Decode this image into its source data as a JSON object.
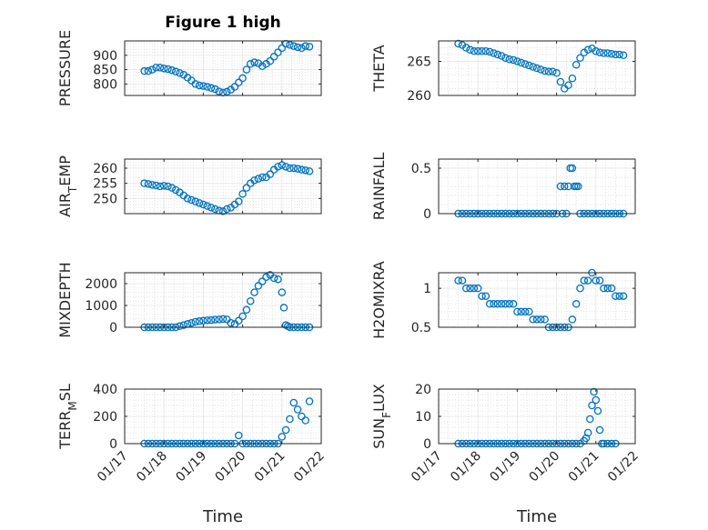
{
  "figure_title": "Figure 1 high",
  "x_axis_label": "Time",
  "x_tick_labels": [
    "01/17",
    "01/18",
    "01/19",
    "01/20",
    "01/21",
    "01/22"
  ],
  "colors": {
    "marker": "#0072BD",
    "axis": "#262626",
    "grid": "#d9d9d9"
  },
  "chart_data": [
    {
      "type": "scatter",
      "ylabel": "PRESSURE",
      "ylim": [
        760,
        950
      ],
      "yticks": [
        800,
        850,
        900
      ],
      "xlim": [
        17,
        22
      ],
      "grid": true,
      "x": [
        17.5,
        17.6,
        17.7,
        17.8,
        17.9,
        18.0,
        18.1,
        18.2,
        18.3,
        18.4,
        18.5,
        18.6,
        18.7,
        18.8,
        18.9,
        19.0,
        19.1,
        19.2,
        19.3,
        19.4,
        19.5,
        19.6,
        19.7,
        19.8,
        19.9,
        20.0,
        20.1,
        20.2,
        20.3,
        20.4,
        20.5,
        20.6,
        20.7,
        20.8,
        20.9,
        21.0,
        21.1,
        21.2,
        21.3,
        21.4,
        21.5,
        21.6,
        21.7
      ],
      "y": [
        845,
        845,
        850,
        857,
        857,
        854,
        852,
        848,
        843,
        838,
        832,
        822,
        812,
        800,
        795,
        793,
        790,
        786,
        782,
        774,
        770,
        773,
        780,
        790,
        805,
        820,
        850,
        870,
        875,
        872,
        862,
        870,
        880,
        895,
        910,
        925,
        940,
        936,
        932,
        928,
        925,
        932,
        930
      ]
    },
    {
      "type": "scatter",
      "ylabel": "THETA",
      "ylim": [
        260,
        268
      ],
      "yticks": [
        260,
        265
      ],
      "xlim": [
        17,
        22
      ],
      "grid": true,
      "x": [
        17.5,
        17.6,
        17.7,
        17.8,
        17.9,
        18.0,
        18.1,
        18.2,
        18.3,
        18.4,
        18.5,
        18.6,
        18.7,
        18.8,
        18.9,
        19.0,
        19.1,
        19.2,
        19.3,
        19.4,
        19.5,
        19.6,
        19.7,
        19.8,
        19.9,
        20.0,
        20.1,
        20.2,
        20.3,
        20.4,
        20.5,
        20.6,
        20.7,
        20.8,
        20.9,
        21.0,
        21.1,
        21.2,
        21.3,
        21.4,
        21.5,
        21.6,
        21.7
      ],
      "y": [
        267.6,
        267.4,
        267.0,
        266.7,
        266.5,
        266.5,
        266.5,
        266.5,
        266.4,
        266.2,
        266.0,
        265.8,
        265.5,
        265.3,
        265.2,
        265.0,
        264.8,
        264.6,
        264.4,
        264.2,
        264.0,
        263.8,
        263.6,
        263.5,
        263.5,
        263.3,
        262.0,
        261.0,
        261.5,
        262.5,
        264.5,
        265.5,
        266.3,
        266.7,
        266.9,
        266.5,
        266.3,
        266.2,
        266.2,
        266.1,
        266.0,
        266.0,
        265.9
      ]
    },
    {
      "type": "scatter",
      "ylabel": "AIR_TEMP",
      "ylim": [
        245,
        263
      ],
      "yticks": [
        250,
        255,
        260
      ],
      "xlim": [
        17,
        22
      ],
      "grid": true,
      "x": [
        17.5,
        17.6,
        17.7,
        17.8,
        17.9,
        18.0,
        18.1,
        18.2,
        18.3,
        18.4,
        18.5,
        18.6,
        18.7,
        18.8,
        18.9,
        19.0,
        19.1,
        19.2,
        19.3,
        19.4,
        19.5,
        19.6,
        19.7,
        19.8,
        19.9,
        20.0,
        20.1,
        20.2,
        20.3,
        20.4,
        20.5,
        20.6,
        20.7,
        20.8,
        20.9,
        21.0,
        21.1,
        21.2,
        21.3,
        21.4,
        21.5,
        21.6,
        21.7
      ],
      "y": [
        255.0,
        254.8,
        254.5,
        254.3,
        254.0,
        254.2,
        254.0,
        253.5,
        252.8,
        252.0,
        251.0,
        250.0,
        249.5,
        249.0,
        248.5,
        248.0,
        247.5,
        247.0,
        246.5,
        246.0,
        245.8,
        246.5,
        247.0,
        248.0,
        249.0,
        251.5,
        253.5,
        255.0,
        256.0,
        256.5,
        257.0,
        257.0,
        258.0,
        259.5,
        260.5,
        261.0,
        260.5,
        260.0,
        260.0,
        259.8,
        259.5,
        259.3,
        259.0
      ]
    },
    {
      "type": "scatter",
      "ylabel": "RAINFALL",
      "ylim": [
        0,
        0.6
      ],
      "yticks": [
        0,
        0.5
      ],
      "xlim": [
        17,
        22
      ],
      "grid": true,
      "x": [
        17.5,
        17.6,
        17.7,
        17.8,
        17.9,
        18.0,
        18.1,
        18.2,
        18.3,
        18.4,
        18.5,
        18.6,
        18.7,
        18.8,
        18.9,
        19.0,
        19.1,
        19.2,
        19.3,
        19.4,
        19.5,
        19.6,
        19.7,
        19.8,
        19.9,
        20.0,
        20.1,
        20.15,
        20.2,
        20.25,
        20.3,
        20.35,
        20.4,
        20.45,
        20.5,
        20.55,
        20.6,
        20.7,
        20.8,
        20.9,
        21.0,
        21.1,
        21.2,
        21.3,
        21.4,
        21.5,
        21.6,
        21.7
      ],
      "y": [
        0,
        0,
        0,
        0,
        0,
        0,
        0,
        0,
        0,
        0,
        0,
        0,
        0,
        0,
        0,
        0,
        0,
        0,
        0,
        0,
        0,
        0,
        0,
        0,
        0,
        0,
        0.3,
        0,
        0.3,
        0,
        0.3,
        0.5,
        0.5,
        0.3,
        0.3,
        0.3,
        0,
        0,
        0,
        0,
        0,
        0,
        0,
        0,
        0,
        0,
        0,
        0
      ]
    },
    {
      "type": "scatter",
      "ylabel": "MIXDEPTH",
      "ylim": [
        0,
        2500
      ],
      "yticks": [
        0,
        1000,
        2000
      ],
      "xlim": [
        17,
        22
      ],
      "grid": true,
      "x": [
        17.5,
        17.6,
        17.7,
        17.8,
        17.9,
        18.0,
        18.1,
        18.2,
        18.3,
        18.4,
        18.5,
        18.6,
        18.7,
        18.8,
        18.9,
        19.0,
        19.1,
        19.2,
        19.3,
        19.4,
        19.5,
        19.6,
        19.7,
        19.8,
        19.9,
        20.0,
        20.1,
        20.2,
        20.3,
        20.4,
        20.5,
        20.6,
        20.7,
        20.8,
        20.9,
        21.0,
        21.05,
        21.1,
        21.15,
        21.2,
        21.3,
        21.4,
        21.5,
        21.6,
        21.7
      ],
      "y": [
        0,
        0,
        0,
        0,
        0,
        0,
        0,
        0,
        0,
        50,
        100,
        150,
        200,
        250,
        280,
        300,
        320,
        330,
        350,
        360,
        380,
        360,
        200,
        150,
        300,
        500,
        800,
        1200,
        1600,
        1900,
        2100,
        2300,
        2400,
        2250,
        2200,
        1600,
        900,
        100,
        50,
        0,
        0,
        0,
        0,
        0,
        0
      ]
    },
    {
      "type": "scatter",
      "ylabel": "H2OMIXRA",
      "ylim": [
        0.5,
        1.2
      ],
      "yticks": [
        0.5,
        1
      ],
      "xlim": [
        17,
        22
      ],
      "grid": true,
      "x": [
        17.5,
        17.6,
        17.7,
        17.8,
        17.9,
        18.0,
        18.1,
        18.2,
        18.3,
        18.4,
        18.5,
        18.6,
        18.7,
        18.8,
        18.9,
        19.0,
        19.1,
        19.2,
        19.3,
        19.4,
        19.5,
        19.6,
        19.7,
        19.8,
        19.9,
        20.0,
        20.1,
        20.2,
        20.3,
        20.4,
        20.5,
        20.6,
        20.7,
        20.8,
        20.9,
        21.0,
        21.1,
        21.2,
        21.3,
        21.4,
        21.5,
        21.6,
        21.7
      ],
      "y": [
        1.1,
        1.1,
        1.0,
        1.0,
        1.0,
        1.0,
        0.9,
        0.9,
        0.8,
        0.8,
        0.8,
        0.8,
        0.8,
        0.8,
        0.8,
        0.7,
        0.7,
        0.7,
        0.7,
        0.6,
        0.6,
        0.6,
        0.6,
        0.5,
        0.5,
        0.5,
        0.5,
        0.5,
        0.5,
        0.6,
        0.8,
        1.0,
        1.1,
        1.1,
        1.2,
        1.1,
        1.1,
        1.0,
        1.0,
        1.0,
        0.9,
        0.9,
        0.9
      ]
    },
    {
      "type": "scatter",
      "ylabel": "TERR_MSL",
      "ylim": [
        0,
        400
      ],
      "yticks": [
        0,
        200,
        400
      ],
      "xlim": [
        17,
        22
      ],
      "grid": true,
      "x": [
        17.5,
        17.6,
        17.7,
        17.8,
        17.9,
        18.0,
        18.1,
        18.2,
        18.3,
        18.4,
        18.5,
        18.6,
        18.7,
        18.8,
        18.9,
        19.0,
        19.1,
        19.2,
        19.3,
        19.4,
        19.5,
        19.6,
        19.7,
        19.8,
        19.9,
        20.0,
        20.1,
        20.2,
        20.3,
        20.4,
        20.5,
        20.6,
        20.7,
        20.8,
        20.9,
        21.0,
        21.1,
        21.2,
        21.3,
        21.4,
        21.5,
        21.6,
        21.7
      ],
      "y": [
        0,
        0,
        0,
        0,
        0,
        0,
        0,
        0,
        0,
        0,
        0,
        0,
        0,
        0,
        0,
        0,
        0,
        0,
        0,
        0,
        0,
        0,
        0,
        0,
        60,
        0,
        0,
        0,
        0,
        0,
        0,
        0,
        0,
        0,
        0,
        50,
        100,
        180,
        300,
        250,
        200,
        170,
        310
      ]
    },
    {
      "type": "scatter",
      "ylabel": "SUN_FLUX",
      "ylim": [
        0,
        20
      ],
      "yticks": [
        0,
        10,
        20
      ],
      "xlim": [
        17,
        22
      ],
      "grid": true,
      "x": [
        17.5,
        17.6,
        17.7,
        17.8,
        17.9,
        18.0,
        18.1,
        18.2,
        18.3,
        18.4,
        18.5,
        18.6,
        18.7,
        18.8,
        18.9,
        19.0,
        19.1,
        19.2,
        19.3,
        19.4,
        19.5,
        19.6,
        19.7,
        19.8,
        19.9,
        20.0,
        20.1,
        20.2,
        20.3,
        20.4,
        20.5,
        20.6,
        20.7,
        20.75,
        20.8,
        20.85,
        20.9,
        20.95,
        21.0,
        21.05,
        21.1,
        21.15,
        21.2,
        21.3,
        21.4,
        21.5
      ],
      "y": [
        0,
        0,
        0,
        0,
        0,
        0,
        0,
        0,
        0,
        0,
        0,
        0,
        0,
        0,
        0,
        0,
        0,
        0,
        0,
        0,
        0,
        0,
        0,
        0,
        0,
        0,
        0,
        0,
        0,
        0,
        0,
        0,
        1,
        2,
        4,
        9,
        14,
        19,
        16,
        12,
        5,
        0,
        0,
        0,
        0,
        0
      ]
    }
  ]
}
